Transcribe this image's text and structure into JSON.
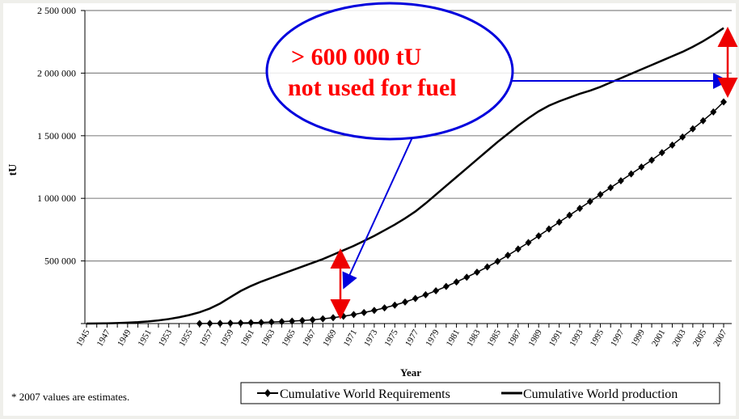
{
  "chart_data": {
    "type": "line",
    "title": "",
    "xlabel": "Year",
    "ylabel": "tU",
    "xlim": [
      1945,
      2007
    ],
    "ylim": [
      0,
      2500000
    ],
    "y_ticks": [
      0,
      500000,
      1000000,
      1500000,
      2000000,
      2500000
    ],
    "y_tick_labels": [
      "",
      "500 000",
      "1 000 000",
      "1 500 000",
      "2 000 000",
      "2 500 000"
    ],
    "x_tick_labels": [
      "1945",
      "1947",
      "1949",
      "1951",
      "1953",
      "1955",
      "1957",
      "1959",
      "1961",
      "1963",
      "1965",
      "1967",
      "1969",
      "1971",
      "1973",
      "1975",
      "1977",
      "1979",
      "1981",
      "1983",
      "1985",
      "1987",
      "1989",
      "1991",
      "1993",
      "1995",
      "1997",
      "1999",
      "2001",
      "2003",
      "2005",
      "2007"
    ],
    "grid": "horizontal",
    "legend_placement": "bottom-right",
    "series": [
      {
        "name": "Cumulative World Requirements",
        "marker": "diamond",
        "start_year": 1956,
        "values": [
          0,
          1000,
          2000,
          3000,
          5000,
          7000,
          9000,
          12000,
          15000,
          19000,
          24000,
          30000,
          38000,
          47000,
          58000,
          72000,
          88000,
          105000,
          125000,
          147000,
          172000,
          200000,
          230000,
          262000,
          296000,
          332000,
          370000,
          410000,
          452000,
          497000,
          545000,
          595000,
          647000,
          700000,
          755000,
          810000,
          865000,
          920000,
          975000,
          1030000,
          1085000,
          1140000,
          1195000,
          1250000,
          1305000,
          1365000,
          1425000,
          1490000,
          1555000,
          1620000,
          1690000,
          1770000
        ]
      },
      {
        "name": "Cumulative World production",
        "marker": "none",
        "start_year": 1945,
        "values": [
          0,
          1000,
          2000,
          4000,
          7000,
          11000,
          17000,
          25000,
          36000,
          50000,
          68000,
          90000,
          120000,
          160000,
          210000,
          260000,
          300000,
          335000,
          365000,
          395000,
          425000,
          455000,
          485000,
          515000,
          550000,
          585000,
          620000,
          660000,
          700000,
          745000,
          790000,
          840000,
          895000,
          960000,
          1030000,
          1100000,
          1170000,
          1240000,
          1310000,
          1380000,
          1450000,
          1515000,
          1580000,
          1640000,
          1695000,
          1740000,
          1775000,
          1805000,
          1835000,
          1860000,
          1890000,
          1925000,
          1960000,
          1995000,
          2030000,
          2065000,
          2100000,
          2135000,
          2170000,
          2210000,
          2255000,
          2305000,
          2360000
        ]
      }
    ],
    "annotations": {
      "callout_line1": "> 600 000 tU",
      "callout_line2": "not used for fuel"
    },
    "footnote": "*  2007 values are estimates."
  },
  "colors": {
    "callout_text": "#ff0000",
    "callout_ellipse": "#0000dd",
    "gap_arrow": "#ee0000"
  }
}
